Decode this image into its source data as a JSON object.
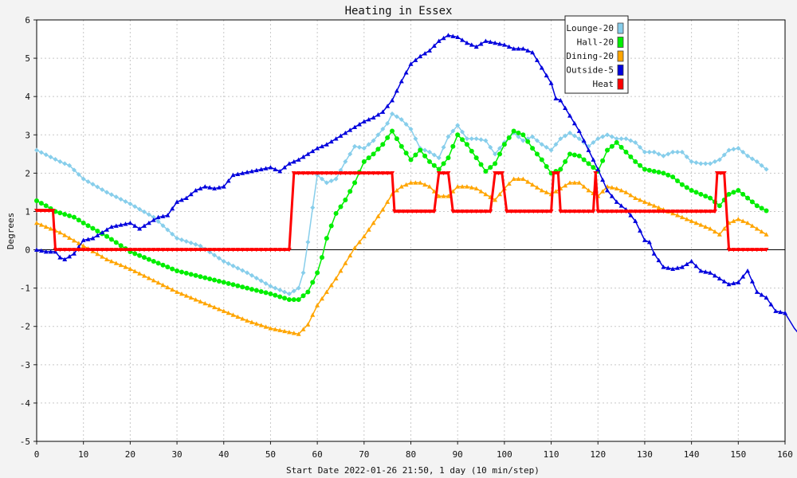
{
  "chart_data": {
    "type": "line",
    "title": "Heating in Essex",
    "xlabel": "Start Date 2022-01-26 21:50, 1 day (10 min/step)",
    "ylabel": "Degrees",
    "xlim": [
      0,
      160
    ],
    "ylim": [
      -5,
      6
    ],
    "xticks": [
      0,
      10,
      20,
      30,
      40,
      50,
      60,
      70,
      80,
      90,
      100,
      110,
      120,
      130,
      140,
      150,
      160
    ],
    "yticks": [
      -5,
      -4,
      -3,
      -2,
      -1,
      0,
      1,
      2,
      3,
      4,
      5,
      6
    ],
    "grid": true,
    "legend_position": "top-right",
    "series": [
      {
        "name": "Lounge-20",
        "color": "#87ceeb",
        "marker": "diamond",
        "points": [
          [
            0,
            2.6
          ],
          [
            5,
            2.3
          ],
          [
            7,
            2.2
          ],
          [
            10,
            1.85
          ],
          [
            15,
            1.5
          ],
          [
            20,
            1.2
          ],
          [
            25,
            0.85
          ],
          [
            30,
            0.3
          ],
          [
            35,
            0.1
          ],
          [
            40,
            -0.3
          ],
          [
            45,
            -0.6
          ],
          [
            50,
            -0.95
          ],
          [
            54,
            -1.15
          ],
          [
            56,
            -1.0
          ],
          [
            57,
            -0.6
          ],
          [
            58,
            0.2
          ],
          [
            59,
            1.1
          ],
          [
            60,
            1.95
          ],
          [
            62,
            1.75
          ],
          [
            64,
            1.85
          ],
          [
            66,
            2.3
          ],
          [
            68,
            2.7
          ],
          [
            70,
            2.65
          ],
          [
            72,
            2.85
          ],
          [
            75,
            3.3
          ],
          [
            76,
            3.55
          ],
          [
            78,
            3.4
          ],
          [
            80,
            3.15
          ],
          [
            82,
            2.65
          ],
          [
            84,
            2.55
          ],
          [
            86,
            2.4
          ],
          [
            88,
            2.95
          ],
          [
            90,
            3.25
          ],
          [
            92,
            2.9
          ],
          [
            94,
            2.9
          ],
          [
            96,
            2.85
          ],
          [
            98,
            2.5
          ],
          [
            100,
            2.8
          ],
          [
            102,
            3.05
          ],
          [
            104,
            2.85
          ],
          [
            106,
            2.95
          ],
          [
            108,
            2.75
          ],
          [
            110,
            2.6
          ],
          [
            112,
            2.9
          ],
          [
            114,
            3.05
          ],
          [
            116,
            2.9
          ],
          [
            118,
            2.7
          ],
          [
            120,
            2.9
          ],
          [
            122,
            3.0
          ],
          [
            124,
            2.9
          ],
          [
            126,
            2.9
          ],
          [
            128,
            2.8
          ],
          [
            130,
            2.55
          ],
          [
            132,
            2.55
          ],
          [
            134,
            2.45
          ],
          [
            136,
            2.55
          ],
          [
            138,
            2.55
          ],
          [
            140,
            2.3
          ],
          [
            142,
            2.25
          ],
          [
            144,
            2.25
          ],
          [
            146,
            2.35
          ],
          [
            148,
            2.6
          ],
          [
            150,
            2.65
          ],
          [
            152,
            2.45
          ],
          [
            154,
            2.3
          ],
          [
            156,
            2.1
          ]
        ]
      },
      {
        "name": "Hall-20",
        "color": "#00ee00",
        "marker": "circle",
        "points": [
          [
            0,
            1.28
          ],
          [
            2,
            1.15
          ],
          [
            4,
            1.0
          ],
          [
            8,
            0.85
          ],
          [
            10,
            0.7
          ],
          [
            15,
            0.35
          ],
          [
            20,
            -0.05
          ],
          [
            25,
            -0.3
          ],
          [
            30,
            -0.55
          ],
          [
            35,
            -0.7
          ],
          [
            40,
            -0.85
          ],
          [
            45,
            -1.0
          ],
          [
            50,
            -1.15
          ],
          [
            54,
            -1.3
          ],
          [
            56,
            -1.3
          ],
          [
            58,
            -1.1
          ],
          [
            60,
            -0.6
          ],
          [
            61,
            -0.2
          ],
          [
            62,
            0.3
          ],
          [
            64,
            0.95
          ],
          [
            66,
            1.3
          ],
          [
            68,
            1.75
          ],
          [
            70,
            2.3
          ],
          [
            72,
            2.5
          ],
          [
            74,
            2.75
          ],
          [
            76,
            3.1
          ],
          [
            78,
            2.7
          ],
          [
            80,
            2.35
          ],
          [
            82,
            2.6
          ],
          [
            84,
            2.3
          ],
          [
            86,
            2.1
          ],
          [
            88,
            2.4
          ],
          [
            90,
            3.0
          ],
          [
            92,
            2.75
          ],
          [
            94,
            2.4
          ],
          [
            96,
            2.05
          ],
          [
            98,
            2.25
          ],
          [
            100,
            2.75
          ],
          [
            102,
            3.1
          ],
          [
            104,
            3.0
          ],
          [
            106,
            2.65
          ],
          [
            108,
            2.35
          ],
          [
            110,
            2.0
          ],
          [
            112,
            2.1
          ],
          [
            114,
            2.5
          ],
          [
            116,
            2.45
          ],
          [
            118,
            2.25
          ],
          [
            120,
            2.05
          ],
          [
            122,
            2.6
          ],
          [
            124,
            2.8
          ],
          [
            126,
            2.55
          ],
          [
            128,
            2.3
          ],
          [
            130,
            2.1
          ],
          [
            134,
            2.0
          ],
          [
            136,
            1.9
          ],
          [
            138,
            1.7
          ],
          [
            140,
            1.55
          ],
          [
            142,
            1.45
          ],
          [
            144,
            1.35
          ],
          [
            146,
            1.15
          ],
          [
            148,
            1.45
          ],
          [
            150,
            1.55
          ],
          [
            152,
            1.35
          ],
          [
            154,
            1.15
          ],
          [
            156,
            1.02
          ]
        ]
      },
      {
        "name": "Dining-20",
        "color": "#ffa500",
        "marker": "triangle",
        "points": [
          [
            0,
            0.7
          ],
          [
            5,
            0.45
          ],
          [
            10,
            0.1
          ],
          [
            15,
            -0.25
          ],
          [
            20,
            -0.5
          ],
          [
            25,
            -0.8
          ],
          [
            30,
            -1.1
          ],
          [
            35,
            -1.35
          ],
          [
            40,
            -1.6
          ],
          [
            45,
            -1.85
          ],
          [
            50,
            -2.05
          ],
          [
            54,
            -2.15
          ],
          [
            56,
            -2.2
          ],
          [
            58,
            -1.95
          ],
          [
            60,
            -1.45
          ],
          [
            62,
            -1.1
          ],
          [
            64,
            -0.75
          ],
          [
            66,
            -0.35
          ],
          [
            68,
            0.05
          ],
          [
            70,
            0.35
          ],
          [
            72,
            0.7
          ],
          [
            74,
            1.05
          ],
          [
            76,
            1.45
          ],
          [
            78,
            1.65
          ],
          [
            80,
            1.75
          ],
          [
            82,
            1.75
          ],
          [
            84,
            1.65
          ],
          [
            86,
            1.4
          ],
          [
            88,
            1.4
          ],
          [
            90,
            1.65
          ],
          [
            92,
            1.65
          ],
          [
            94,
            1.6
          ],
          [
            96,
            1.45
          ],
          [
            98,
            1.3
          ],
          [
            100,
            1.6
          ],
          [
            102,
            1.85
          ],
          [
            104,
            1.85
          ],
          [
            106,
            1.7
          ],
          [
            108,
            1.55
          ],
          [
            110,
            1.45
          ],
          [
            112,
            1.6
          ],
          [
            114,
            1.75
          ],
          [
            116,
            1.75
          ],
          [
            118,
            1.55
          ],
          [
            120,
            1.4
          ],
          [
            122,
            1.65
          ],
          [
            124,
            1.6
          ],
          [
            126,
            1.5
          ],
          [
            128,
            1.35
          ],
          [
            130,
            1.25
          ],
          [
            132,
            1.15
          ],
          [
            134,
            1.05
          ],
          [
            136,
            0.95
          ],
          [
            138,
            0.85
          ],
          [
            140,
            0.75
          ],
          [
            142,
            0.65
          ],
          [
            144,
            0.55
          ],
          [
            146,
            0.4
          ],
          [
            148,
            0.7
          ],
          [
            150,
            0.8
          ],
          [
            152,
            0.7
          ],
          [
            154,
            0.55
          ],
          [
            156,
            0.4
          ]
        ]
      },
      {
        "name": "Outside-5",
        "color": "#0000dd",
        "marker": "triangle",
        "points": [
          [
            0,
            0.0
          ],
          [
            2,
            -0.05
          ],
          [
            4,
            -0.05
          ],
          [
            5,
            -0.2
          ],
          [
            6,
            -0.25
          ],
          [
            8,
            -0.1
          ],
          [
            10,
            0.25
          ],
          [
            12,
            0.3
          ],
          [
            14,
            0.45
          ],
          [
            16,
            0.6
          ],
          [
            18,
            0.65
          ],
          [
            20,
            0.7
          ],
          [
            22,
            0.55
          ],
          [
            24,
            0.7
          ],
          [
            26,
            0.85
          ],
          [
            28,
            0.9
          ],
          [
            30,
            1.25
          ],
          [
            32,
            1.35
          ],
          [
            34,
            1.55
          ],
          [
            36,
            1.65
          ],
          [
            38,
            1.6
          ],
          [
            40,
            1.65
          ],
          [
            42,
            1.95
          ],
          [
            44,
            2.0
          ],
          [
            46,
            2.05
          ],
          [
            48,
            2.1
          ],
          [
            50,
            2.15
          ],
          [
            52,
            2.05
          ],
          [
            54,
            2.25
          ],
          [
            56,
            2.35
          ],
          [
            58,
            2.5
          ],
          [
            60,
            2.65
          ],
          [
            62,
            2.75
          ],
          [
            64,
            2.9
          ],
          [
            66,
            3.05
          ],
          [
            68,
            3.2
          ],
          [
            70,
            3.35
          ],
          [
            72,
            3.45
          ],
          [
            74,
            3.6
          ],
          [
            76,
            3.9
          ],
          [
            78,
            4.4
          ],
          [
            80,
            4.85
          ],
          [
            82,
            5.05
          ],
          [
            84,
            5.2
          ],
          [
            86,
            5.45
          ],
          [
            88,
            5.6
          ],
          [
            90,
            5.55
          ],
          [
            92,
            5.4
          ],
          [
            94,
            5.3
          ],
          [
            96,
            5.45
          ],
          [
            98,
            5.4
          ],
          [
            100,
            5.35
          ],
          [
            102,
            5.25
          ],
          [
            104,
            5.25
          ],
          [
            106,
            5.15
          ],
          [
            108,
            4.75
          ],
          [
            110,
            4.35
          ],
          [
            111,
            3.95
          ],
          [
            112,
            3.9
          ],
          [
            114,
            3.5
          ],
          [
            116,
            3.1
          ],
          [
            118,
            2.6
          ],
          [
            120,
            2.1
          ],
          [
            122,
            1.55
          ],
          [
            124,
            1.25
          ],
          [
            126,
            1.05
          ],
          [
            128,
            0.75
          ],
          [
            130,
            0.25
          ],
          [
            131,
            0.2
          ],
          [
            132,
            -0.1
          ],
          [
            134,
            -0.45
          ],
          [
            136,
            -0.5
          ],
          [
            138,
            -0.45
          ],
          [
            140,
            -0.3
          ],
          [
            142,
            -0.55
          ],
          [
            144,
            -0.6
          ],
          [
            146,
            -0.75
          ],
          [
            148,
            -0.9
          ],
          [
            150,
            -0.85
          ],
          [
            152,
            -0.55
          ],
          [
            154,
            -1.1
          ],
          [
            156,
            -1.25
          ],
          [
            158,
            -1.6
          ],
          [
            160,
            -1.65
          ],
          [
            162,
            -2.05
          ],
          [
            163,
            -2.2
          ]
        ]
      },
      {
        "name": "Heat",
        "color": "#ff0000",
        "marker": "triangle-down",
        "points": [
          [
            0,
            1.02
          ],
          [
            3.5,
            1.02
          ],
          [
            4,
            0
          ],
          [
            54,
            0
          ],
          [
            55,
            2.0
          ],
          [
            76,
            2.0
          ],
          [
            76.5,
            1.0
          ],
          [
            85,
            1.0
          ],
          [
            86,
            2.0
          ],
          [
            88,
            2.0
          ],
          [
            89,
            1.0
          ],
          [
            97,
            1.0
          ],
          [
            98,
            2.0
          ],
          [
            99.5,
            2.0
          ],
          [
            100.5,
            1.0
          ],
          [
            110,
            1.0
          ],
          [
            110.5,
            2.0
          ],
          [
            111.5,
            2.0
          ],
          [
            112,
            1.0
          ],
          [
            119,
            1.0
          ],
          [
            119.5,
            2.0
          ],
          [
            120,
            1.0
          ],
          [
            145,
            1.0
          ],
          [
            145.5,
            2.0
          ],
          [
            147,
            2.0
          ],
          [
            148,
            0
          ],
          [
            156,
            0
          ]
        ]
      }
    ]
  }
}
